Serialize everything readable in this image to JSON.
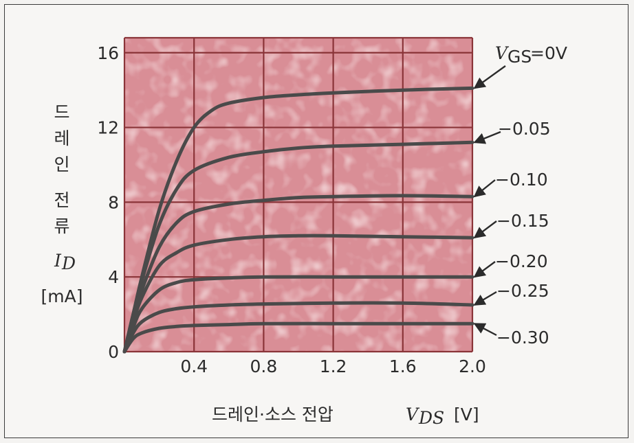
{
  "chart_data": {
    "type": "line",
    "ylabel_chars": [
      "드",
      "레",
      "인",
      "전",
      "류"
    ],
    "ylabel_var": "I",
    "ylabel_sub": "D",
    "ylabel_unit": "[mA]",
    "xlabel_text": "드레인·소스 전압",
    "xlabel_var": "V",
    "xlabel_sub": "DS",
    "xlabel_unit": "[V]",
    "xlim": [
      0,
      2.0
    ],
    "ylim": [
      0,
      16.8
    ],
    "x_ticks": [
      0.4,
      0.8,
      1.2,
      1.6,
      2.0
    ],
    "x_tick_labels": [
      "0.4",
      "0.8",
      "1.2",
      "1.6",
      "2.0"
    ],
    "y_ticks": [
      0,
      4,
      8,
      12,
      16
    ],
    "y_tick_labels": [
      "0",
      "4",
      "8",
      "12",
      "16"
    ],
    "grid": true,
    "series": [
      {
        "name": "VGS=0V",
        "label_var": "V",
        "label_sub": "GS",
        "label_rest": "=0V",
        "x": [
          0,
          0.05,
          0.1,
          0.2,
          0.3,
          0.4,
          0.5,
          0.6,
          0.8,
          1.0,
          1.2,
          1.6,
          2.0
        ],
        "y": [
          0,
          2.0,
          4.0,
          7.6,
          10.2,
          12.0,
          12.9,
          13.3,
          13.6,
          13.75,
          13.85,
          14.0,
          14.1
        ]
      },
      {
        "name": "-0.05",
        "label": "−0.05",
        "x": [
          0,
          0.05,
          0.1,
          0.2,
          0.3,
          0.4,
          0.6,
          0.8,
          1.0,
          1.2,
          1.6,
          2.0
        ],
        "y": [
          0,
          2.0,
          3.8,
          6.8,
          8.7,
          9.7,
          10.4,
          10.7,
          10.9,
          11.0,
          11.1,
          11.2
        ]
      },
      {
        "name": "-0.10",
        "label": "−0.10",
        "x": [
          0,
          0.05,
          0.1,
          0.2,
          0.3,
          0.4,
          0.6,
          0.8,
          1.0,
          1.2,
          1.6,
          2.0
        ],
        "y": [
          0,
          1.8,
          3.3,
          5.6,
          6.9,
          7.5,
          7.9,
          8.1,
          8.25,
          8.3,
          8.35,
          8.3
        ]
      },
      {
        "name": "-0.15",
        "label": "−0.15",
        "x": [
          0,
          0.05,
          0.1,
          0.2,
          0.3,
          0.4,
          0.6,
          0.8,
          1.0,
          1.2,
          1.6,
          2.0
        ],
        "y": [
          0,
          1.6,
          2.9,
          4.6,
          5.3,
          5.7,
          6.0,
          6.15,
          6.2,
          6.2,
          6.15,
          6.1
        ]
      },
      {
        "name": "-0.20",
        "label": "−0.20",
        "x": [
          0,
          0.05,
          0.1,
          0.2,
          0.3,
          0.4,
          0.6,
          0.8,
          1.2,
          1.6,
          2.0
        ],
        "y": [
          0,
          1.3,
          2.3,
          3.3,
          3.7,
          3.85,
          3.95,
          4.0,
          4.0,
          4.0,
          4.0
        ]
      },
      {
        "name": "-0.25",
        "label": "−0.25",
        "x": [
          0,
          0.05,
          0.1,
          0.2,
          0.3,
          0.4,
          0.6,
          0.8,
          1.2,
          1.6,
          2.0
        ],
        "y": [
          0,
          1.0,
          1.6,
          2.1,
          2.3,
          2.4,
          2.5,
          2.55,
          2.6,
          2.6,
          2.5
        ]
      },
      {
        "name": "-0.30",
        "label": "−0.30",
        "x": [
          0,
          0.05,
          0.1,
          0.2,
          0.3,
          0.4,
          0.6,
          0.8,
          1.2,
          1.6,
          2.0
        ],
        "y": [
          0,
          0.7,
          1.0,
          1.25,
          1.35,
          1.4,
          1.45,
          1.5,
          1.5,
          1.5,
          1.5
        ]
      }
    ],
    "colors": {
      "plot_bg": "#d98e96",
      "grid": "#8a3438",
      "curve": "#4a4a4a",
      "text": "#2b2b2b"
    }
  }
}
